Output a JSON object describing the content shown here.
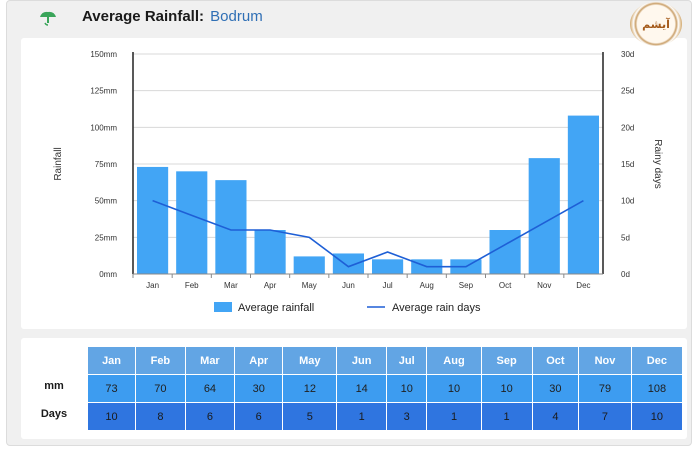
{
  "header": {
    "title": "Average Rainfall:",
    "city": "Bodrum",
    "badge_text": "آیشم"
  },
  "chart_data": {
    "type": "bar",
    "categories": [
      "Jan",
      "Feb",
      "Mar",
      "Apr",
      "May",
      "Jun",
      "Jul",
      "Aug",
      "Sep",
      "Oct",
      "Nov",
      "Dec"
    ],
    "series": [
      {
        "name": "Average rainfall",
        "kind": "bar",
        "axis": "left",
        "color": "#42a5f5",
        "values": [
          73,
          70,
          64,
          30,
          12,
          14,
          10,
          10,
          10,
          30,
          79,
          108
        ]
      },
      {
        "name": "Average rain days",
        "kind": "line",
        "axis": "right",
        "color": "#1e5fd6",
        "values": [
          10,
          8,
          6,
          6,
          5,
          1,
          3,
          1,
          1,
          4,
          7,
          10
        ]
      }
    ],
    "ylabel": "Rainfall",
    "y2label": "Rainy days",
    "ylim": [
      0,
      150
    ],
    "y2lim": [
      0,
      30
    ],
    "yticks": [
      "0mm",
      "25mm",
      "50mm",
      "75mm",
      "100mm",
      "125mm",
      "150mm"
    ],
    "y2ticks": [
      "0d",
      "5d",
      "10d",
      "15d",
      "20d",
      "25d",
      "30d"
    ],
    "grid": true,
    "legend_position": "bottom-center"
  },
  "table": {
    "months": [
      "Jan",
      "Feb",
      "Mar",
      "Apr",
      "May",
      "Jun",
      "Jul",
      "Aug",
      "Sep",
      "Oct",
      "Nov",
      "Dec"
    ],
    "mm_label": "mm",
    "days_label": "Days",
    "mm": [
      "73",
      "70",
      "64",
      "30",
      "12",
      "14",
      "10",
      "10",
      "10",
      "30",
      "79",
      "108"
    ],
    "days": [
      "10",
      "8",
      "6",
      "6",
      "5",
      "1",
      "3",
      "1",
      "1",
      "4",
      "7",
      "10"
    ]
  },
  "colors": {
    "bar": "#42a5f5",
    "line": "#1e5fd6",
    "header_cell": "#62a5e4",
    "mm_cell": "#3d9cf0",
    "days_cell": "#2f75e0"
  }
}
